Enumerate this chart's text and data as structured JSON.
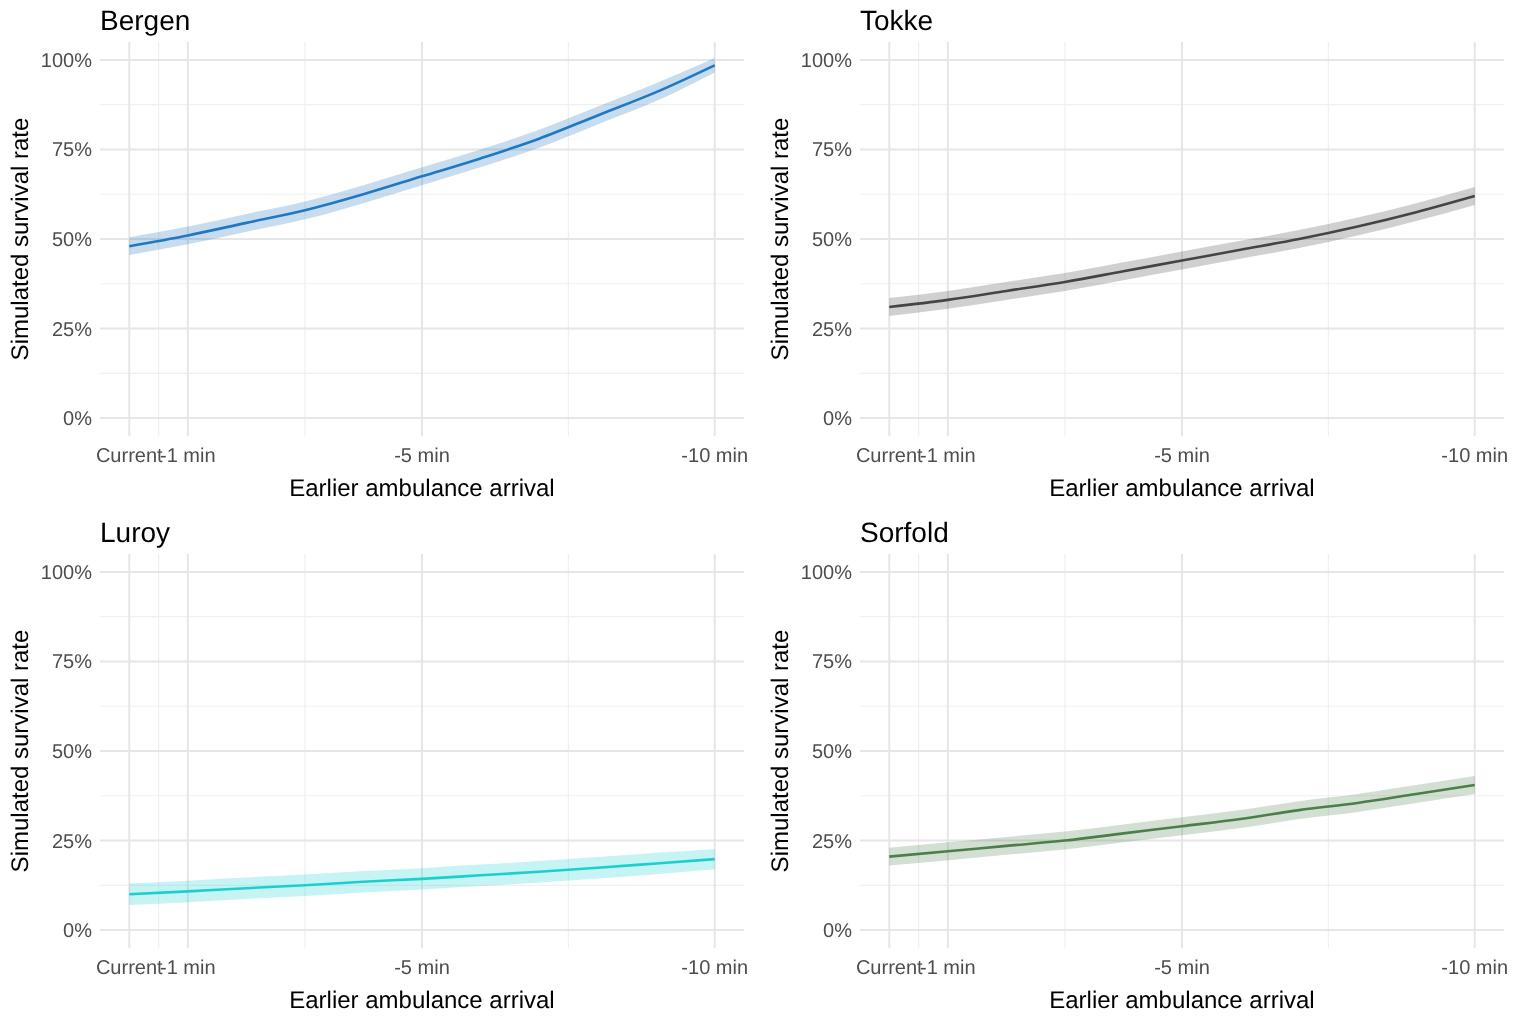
{
  "chart_data": [
    {
      "type": "line",
      "title": "Bergen",
      "xlabel": "Earlier ambulance arrival",
      "ylabel": "Simulated survival rate",
      "x": [
        0,
        -1,
        -2,
        -3,
        -4,
        -5,
        -6,
        -7,
        -8,
        -9,
        -10
      ],
      "xlim": [
        0.5,
        -10.5
      ],
      "xticks": [
        {
          "value": 0,
          "label": "Current"
        },
        {
          "value": -1,
          "label": "-1 min"
        },
        {
          "value": -5,
          "label": "-5 min"
        },
        {
          "value": -10,
          "label": "-10 min"
        }
      ],
      "ylim": [
        -5,
        105
      ],
      "yticks": [
        {
          "value": 0,
          "label": "0%"
        },
        {
          "value": 25,
          "label": "25%"
        },
        {
          "value": 50,
          "label": "50%"
        },
        {
          "value": 75,
          "label": "75%"
        },
        {
          "value": 100,
          "label": "100%"
        }
      ],
      "grid": true,
      "series": [
        {
          "color": "#1f78c1",
          "values": [
            48,
            51,
            54.5,
            58,
            62.5,
            67.5,
            72.5,
            78,
            84.5,
            91,
            98.5
          ],
          "lower": [
            45.5,
            48.5,
            52,
            55.5,
            60,
            65,
            70,
            75.5,
            82,
            88.5,
            96.5
          ],
          "upper": [
            50.5,
            53.5,
            57,
            60.5,
            65,
            70,
            75,
            80.5,
            87,
            93.5,
            100.5
          ]
        }
      ]
    },
    {
      "type": "line",
      "title": "Tokke",
      "xlabel": "Earlier ambulance arrival",
      "ylabel": "Simulated survival rate",
      "x": [
        0,
        -1,
        -2,
        -3,
        -4,
        -5,
        -6,
        -7,
        -8,
        -9,
        -10
      ],
      "xlim": [
        0.5,
        -10.5
      ],
      "xticks": [
        {
          "value": 0,
          "label": "Current"
        },
        {
          "value": -1,
          "label": "-1 min"
        },
        {
          "value": -5,
          "label": "-5 min"
        },
        {
          "value": -10,
          "label": "-10 min"
        }
      ],
      "ylim": [
        -5,
        105
      ],
      "yticks": [
        {
          "value": 0,
          "label": "0%"
        },
        {
          "value": 25,
          "label": "25%"
        },
        {
          "value": 50,
          "label": "50%"
        },
        {
          "value": 75,
          "label": "75%"
        },
        {
          "value": 100,
          "label": "100%"
        }
      ],
      "grid": true,
      "series": [
        {
          "color": "#444444",
          "values": [
            31,
            33,
            35.5,
            38,
            41,
            44,
            47,
            50,
            53.5,
            57.5,
            62
          ],
          "lower": [
            28.5,
            30.5,
            33,
            35.5,
            38.5,
            41.5,
            44.5,
            47.5,
            51,
            55,
            59.5
          ],
          "upper": [
            33.5,
            35.5,
            38,
            40.5,
            43.5,
            46.5,
            49.5,
            52.5,
            56,
            60,
            64.5
          ]
        }
      ]
    },
    {
      "type": "line",
      "title": "Luroy",
      "xlabel": "Earlier ambulance arrival",
      "ylabel": "Simulated survival rate",
      "x": [
        0,
        -1,
        -2,
        -3,
        -4,
        -5,
        -6,
        -7,
        -8,
        -9,
        -10
      ],
      "xlim": [
        0.5,
        -10.5
      ],
      "xticks": [
        {
          "value": 0,
          "label": "Current"
        },
        {
          "value": -1,
          "label": "-1 min"
        },
        {
          "value": -5,
          "label": "-5 min"
        },
        {
          "value": -10,
          "label": "-10 min"
        }
      ],
      "ylim": [
        -5,
        105
      ],
      "yticks": [
        {
          "value": 0,
          "label": "0%"
        },
        {
          "value": 25,
          "label": "25%"
        },
        {
          "value": 50,
          "label": "50%"
        },
        {
          "value": 75,
          "label": "75%"
        },
        {
          "value": 100,
          "label": "100%"
        }
      ],
      "grid": true,
      "series": [
        {
          "color": "#1ccfcf",
          "values": [
            10,
            10.8,
            11.7,
            12.5,
            13.5,
            14.3,
            15.3,
            16.3,
            17.4,
            18.6,
            19.8
          ],
          "lower": [
            7,
            7.8,
            8.7,
            9.5,
            10.5,
            11.3,
            12.3,
            13.3,
            14.4,
            15.6,
            17
          ],
          "upper": [
            13,
            13.8,
            14.7,
            15.5,
            16.5,
            17.3,
            18.3,
            19.3,
            20.4,
            21.6,
            22.6
          ]
        }
      ]
    },
    {
      "type": "line",
      "title": "Sorfold",
      "xlabel": "Earlier ambulance arrival",
      "ylabel": "Simulated survival rate",
      "x": [
        0,
        -1,
        -2,
        -3,
        -4,
        -5,
        -6,
        -7,
        -8,
        -9,
        -10
      ],
      "xlim": [
        0.5,
        -10.5
      ],
      "xticks": [
        {
          "value": 0,
          "label": "Current"
        },
        {
          "value": -1,
          "label": "-1 min"
        },
        {
          "value": -5,
          "label": "-5 min"
        },
        {
          "value": -10,
          "label": "-10 min"
        }
      ],
      "ylim": [
        -5,
        105
      ],
      "yticks": [
        {
          "value": 0,
          "label": "0%"
        },
        {
          "value": 25,
          "label": "25%"
        },
        {
          "value": 50,
          "label": "50%"
        },
        {
          "value": 75,
          "label": "75%"
        },
        {
          "value": 100,
          "label": "100%"
        }
      ],
      "grid": true,
      "series": [
        {
          "color": "#4a7f4a",
          "values": [
            20.5,
            22,
            23.5,
            25,
            27,
            29,
            31,
            33.5,
            35.5,
            38,
            40.5
          ],
          "lower": [
            18,
            19.5,
            21,
            22.5,
            24.5,
            26.5,
            28.5,
            31,
            33,
            35.5,
            38
          ],
          "upper": [
            23,
            24.5,
            26,
            27.5,
            29.5,
            31.5,
            33.5,
            36,
            38,
            40.5,
            43
          ]
        }
      ]
    }
  ]
}
